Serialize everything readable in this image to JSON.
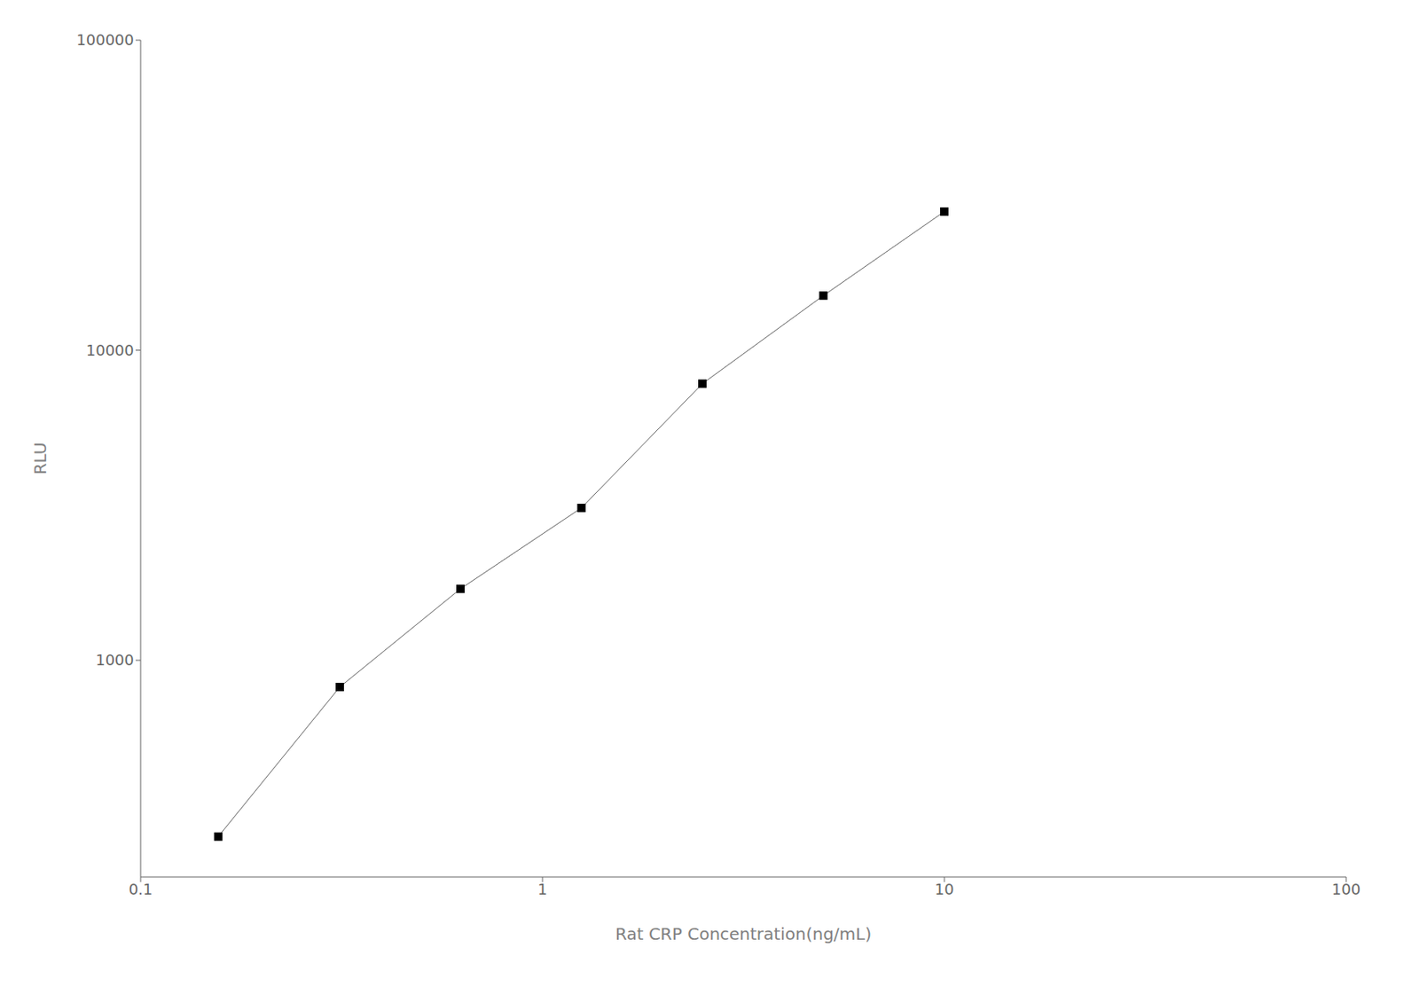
{
  "chart_data": {
    "type": "line",
    "x": [
      0.156,
      0.313,
      0.625,
      1.25,
      2.5,
      5.0,
      10.0
    ],
    "values": [
      270,
      820,
      1700,
      3100,
      7800,
      15000,
      28000
    ],
    "x_label": "Rat CRP Concentration(ng/mL)",
    "y_label": "RLU",
    "xlim": [
      0.1,
      100
    ],
    "ylim": [
      200,
      100000
    ],
    "xticks": [
      0.1,
      1,
      10,
      100
    ],
    "yticks": [
      1000,
      10000,
      100000
    ],
    "log": true,
    "grid": false,
    "color": "#666666",
    "colors": [
      "#000000",
      "#000000",
      "#000000",
      "#000000",
      "#000000",
      "#000000",
      "#000000"
    ],
    "marker": "square"
  }
}
